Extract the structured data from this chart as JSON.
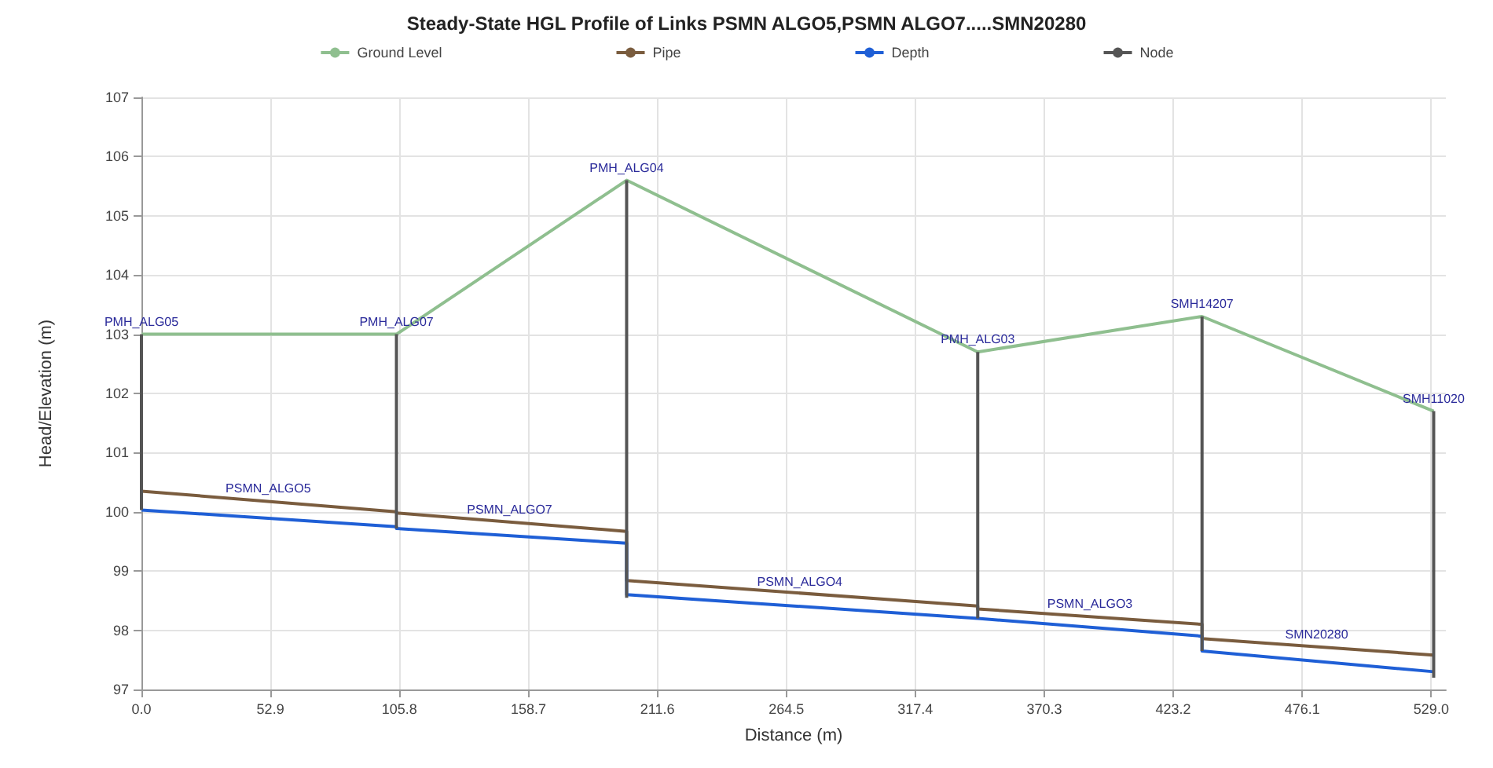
{
  "chart_data": {
    "type": "line",
    "title": "Steady-State HGL Profile of Links PSMN ALGO5,PSMN ALGO7.....SMN20280",
    "xlabel": "Distance (m)",
    "ylabel": "Head/Elevation (m)",
    "series": [
      {
        "name": "Ground Level",
        "color": "#8fbf8f",
        "x": [
          0,
          104.6,
          199,
          343,
          435,
          530
        ],
        "values": [
          103.0,
          103.0,
          105.6,
          102.7,
          103.3,
          101.7
        ]
      },
      {
        "name": "Pipe",
        "color": "#7a5c3e",
        "x": [
          0,
          104.6,
          104.6,
          199,
          199,
          343,
          343,
          435,
          435,
          530
        ],
        "values": [
          100.35,
          100.0,
          99.98,
          99.67,
          98.84,
          98.41,
          98.36,
          98.1,
          97.86,
          97.58
        ]
      },
      {
        "name": "Depth",
        "color": "#1f5fd6",
        "x": [
          0,
          104.6,
          104.6,
          199,
          199,
          343,
          343,
          435,
          435,
          530
        ],
        "values": [
          100.03,
          99.75,
          99.72,
          99.47,
          98.6,
          98.2,
          98.2,
          97.9,
          97.65,
          97.3
        ]
      },
      {
        "name": "Node",
        "color": "#555555",
        "x": [
          0,
          0
        ],
        "values": [
          100.03,
          103.0
        ]
      },
      {
        "color": "#555555",
        "x": [
          104.6,
          104.6
        ],
        "values": [
          99.72,
          103.0
        ]
      },
      {
        "color": "#555555",
        "x": [
          199,
          199
        ],
        "values": [
          98.55,
          105.6
        ]
      },
      {
        "color": "#555555",
        "x": [
          343,
          343
        ],
        "values": [
          98.2,
          102.7
        ]
      },
      {
        "color": "#555555",
        "x": [
          435,
          435
        ],
        "values": [
          97.65,
          103.3
        ]
      },
      {
        "color": "#555555",
        "x": [
          530,
          530
        ],
        "values": [
          97.2,
          101.7
        ]
      }
    ],
    "xlim": [
      0,
      535
    ],
    "xticks": [
      {
        "value": 0,
        "label": "0.0"
      },
      52.9,
      105.8,
      158.7,
      211.6,
      264.5,
      317.4,
      370.3,
      423.2,
      476.1,
      {
        "value": 529,
        "label": "529.0"
      }
    ],
    "ylim": [
      97,
      107
    ],
    "yticks": [
      97,
      98,
      99,
      100,
      101,
      102,
      103,
      104,
      105,
      106,
      107
    ],
    "grid": true,
    "legend": "top",
    "marker": "none",
    "annotations": [
      {
        "text": "PMH_ALG05",
        "x": 0,
        "y": 103.0
      },
      {
        "text": "PMH_ALG07",
        "x": 104.6,
        "y": 103.0
      },
      {
        "text": "PMH_ALG04",
        "x": 199,
        "y": 105.6
      },
      {
        "text": "PMH_ALG03",
        "x": 343,
        "y": 102.7
      },
      {
        "text": "SMH14207",
        "x": 435,
        "y": 103.3
      },
      {
        "text": "SMH11020",
        "x": 530,
        "y": 101.7
      },
      {
        "text": "PSMN_ALGO5",
        "x": 52,
        "y": 100.18
      },
      {
        "text": "PSMN_ALGO7",
        "x": 151,
        "y": 99.83
      },
      {
        "text": "PSMN_ALGO4",
        "x": 270,
        "y": 98.6
      },
      {
        "text": "PSMN_ALGO3",
        "x": 389,
        "y": 98.23
      },
      {
        "text": "SMN20280",
        "x": 482,
        "y": 97.72
      }
    ]
  }
}
